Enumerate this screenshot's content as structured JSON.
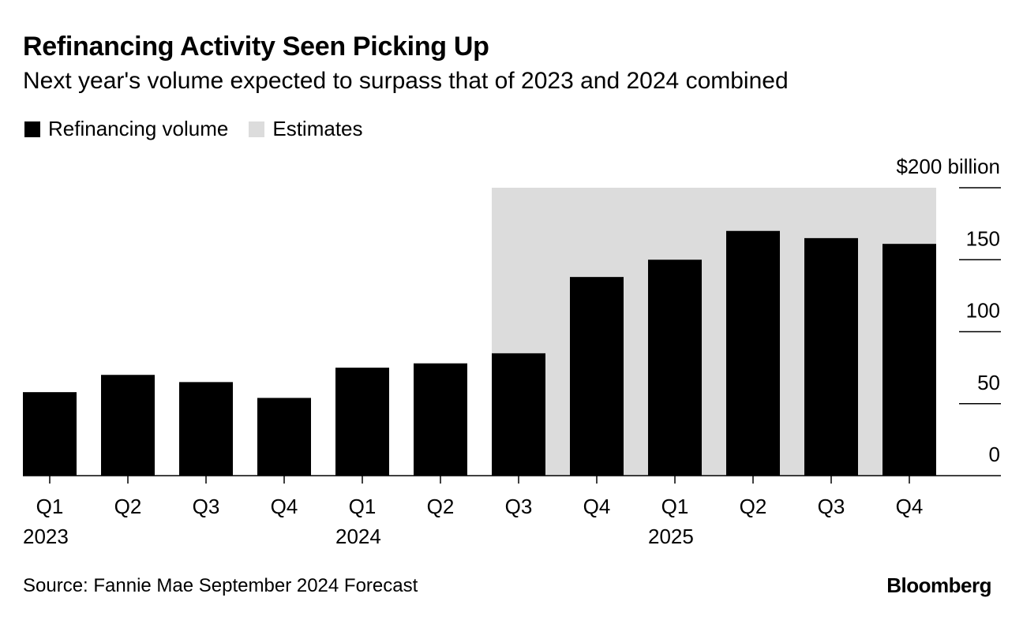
{
  "title": "Refinancing Activity Seen Picking Up",
  "subtitle": "Next year's volume expected to surpass that of 2023 and 2024 combined",
  "legend": {
    "items": [
      {
        "label": "Refinancing volume",
        "color": "#000000"
      },
      {
        "label": "Estimates",
        "color": "#dcdcdc"
      }
    ]
  },
  "source": "Source: Fannie Mae September 2024 Forecast",
  "brand": "Bloomberg",
  "chart_data": {
    "type": "bar",
    "categories": [
      "Q1",
      "Q2",
      "Q3",
      "Q4",
      "Q1",
      "Q2",
      "Q3",
      "Q4",
      "Q1",
      "Q2",
      "Q3",
      "Q4"
    ],
    "year_labels": [
      {
        "index": 0,
        "label": "2023"
      },
      {
        "index": 4,
        "label": "2024"
      },
      {
        "index": 8,
        "label": "2025"
      }
    ],
    "series": [
      {
        "name": "Refinancing volume",
        "values": [
          58,
          70,
          65,
          54,
          75,
          78,
          85,
          138,
          150,
          170,
          165,
          161
        ]
      }
    ],
    "estimates_from_index": 6,
    "ylim": [
      0,
      200
    ],
    "yticks": [
      0,
      50,
      100,
      150,
      200
    ],
    "ytick_labels": [
      "0",
      "50",
      "100",
      "150",
      "$200 billion"
    ],
    "grid": false,
    "bar_color": "#000000",
    "estimate_shade_color": "#dcdcdc"
  }
}
